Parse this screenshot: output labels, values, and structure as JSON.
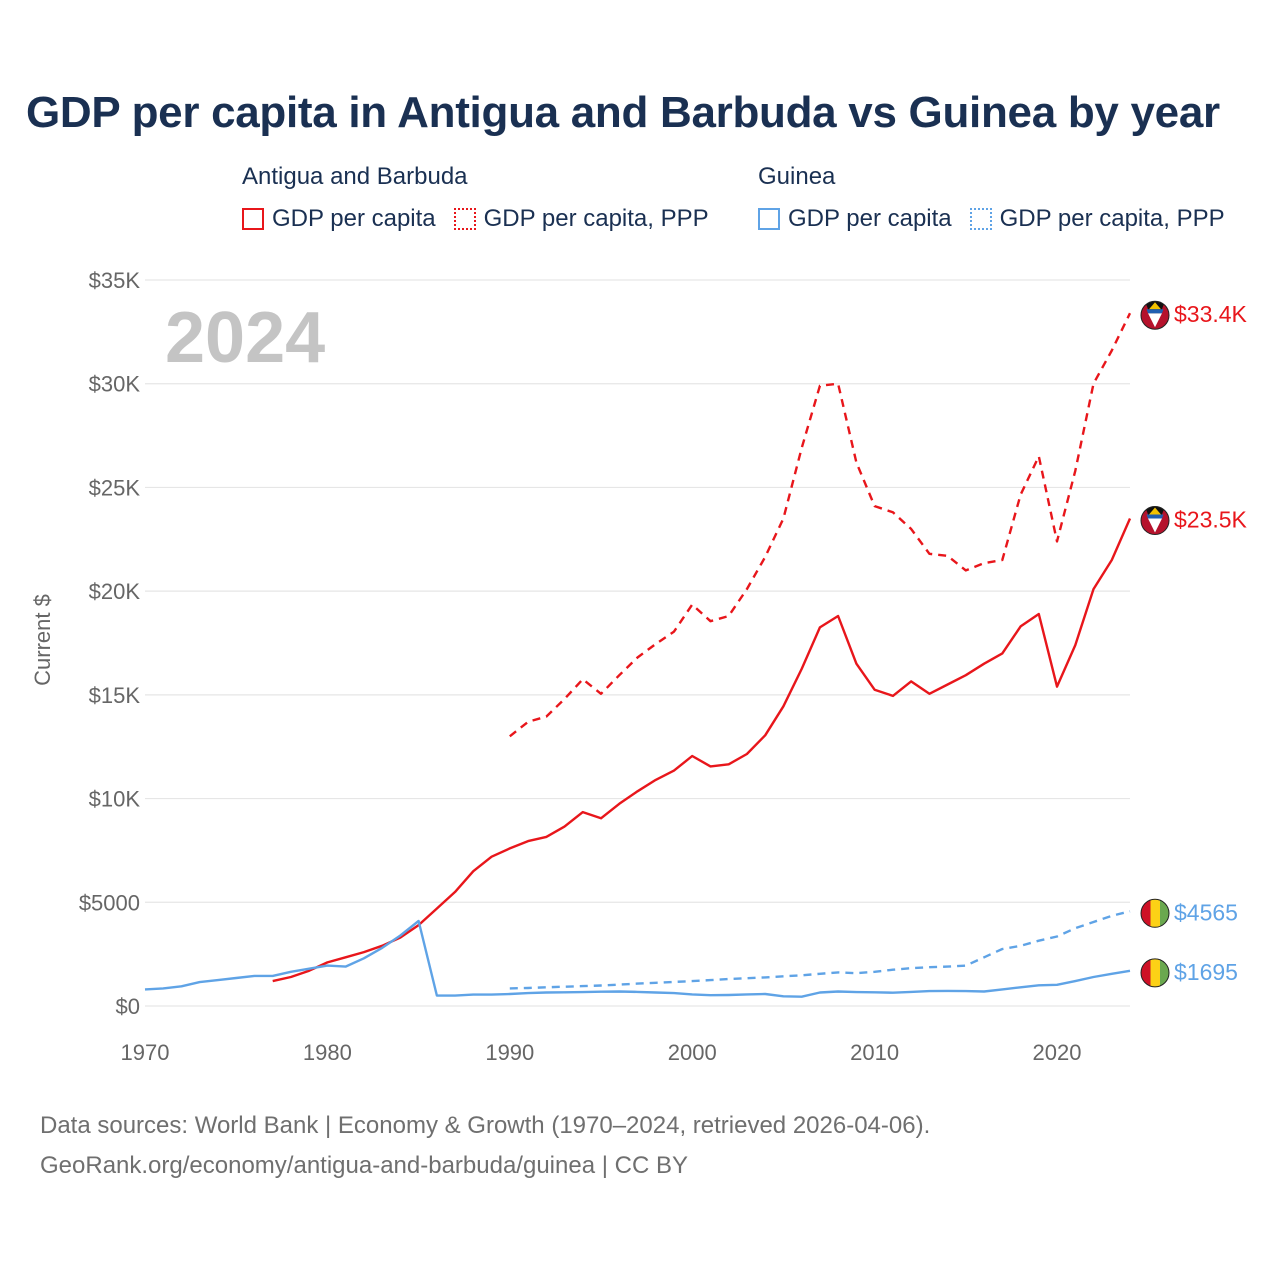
{
  "title": "GDP per capita in Antigua and Barbuda vs Guinea by year",
  "legend": [
    {
      "country": "Antigua and Barbuda",
      "items": [
        {
          "label": "GDP per capita",
          "style": "solid"
        },
        {
          "label": "GDP per capita, PPP",
          "style": "dotted"
        }
      ],
      "color": "#e8161b"
    },
    {
      "country": "Guinea",
      "items": [
        {
          "label": "GDP per capita",
          "style": "solid"
        },
        {
          "label": "GDP per capita, PPP",
          "style": "dotted"
        }
      ],
      "color": "#5fa3e6"
    }
  ],
  "year_label": "2024",
  "footer": {
    "line1": "Data sources: World Bank | Economy & Growth (1970–2024, retrieved 2026-04-06).",
    "line2": "GeoRank.org/economy/antigua-and-barbuda/guinea | CC BY"
  },
  "chart_data": {
    "type": "line",
    "title": "GDP per capita in Antigua and Barbuda vs Guinea by year",
    "xlabel": "",
    "ylabel": "Current $",
    "xlim": [
      1970,
      2024
    ],
    "ylim": [
      0,
      35000
    ],
    "x_ticks": [
      1970,
      1980,
      1990,
      2000,
      2010,
      2020
    ],
    "y_ticks": [
      {
        "value": 0,
        "label": "$0"
      },
      {
        "value": 5000,
        "label": "$5000"
      },
      {
        "value": 10000,
        "label": "$10K"
      },
      {
        "value": 15000,
        "label": "$15K"
      },
      {
        "value": 20000,
        "label": "$20K"
      },
      {
        "value": 25000,
        "label": "$25K"
      },
      {
        "value": 30000,
        "label": "$30K"
      },
      {
        "value": 35000,
        "label": "$35K"
      }
    ],
    "series": [
      {
        "name": "Antigua and Barbuda GDP per capita",
        "color": "#e8161b",
        "dash": "solid",
        "end_label": "$23.5K",
        "flag": "antigua-and-barbuda",
        "x": [
          1977,
          1978,
          1979,
          1980,
          1981,
          1982,
          1983,
          1984,
          1985,
          1986,
          1987,
          1988,
          1989,
          1990,
          1991,
          1992,
          1993,
          1994,
          1995,
          1996,
          1997,
          1998,
          1999,
          2000,
          2001,
          2002,
          2003,
          2004,
          2005,
          2006,
          2007,
          2008,
          2009,
          2010,
          2011,
          2012,
          2013,
          2014,
          2015,
          2016,
          2017,
          2018,
          2019,
          2020,
          2021,
          2022,
          2023,
          2024
        ],
        "values": [
          1200,
          1400,
          1700,
          2100,
          2350,
          2600,
          2900,
          3300,
          3900,
          4700,
          5500,
          6500,
          7200,
          7600,
          7950,
          8150,
          8650,
          9350,
          9050,
          9750,
          10350,
          10900,
          11350,
          12050,
          11550,
          11650,
          12150,
          13050,
          14450,
          16250,
          18250,
          18800,
          16500,
          15250,
          14950,
          15650,
          15050,
          15500,
          15950,
          16500,
          17000,
          18300,
          18900,
          15400,
          17400,
          20100,
          21500,
          23500
        ]
      },
      {
        "name": "Antigua and Barbuda GDP per capita, PPP",
        "color": "#e8161b",
        "dash": "dashed",
        "end_label": "$33.4K",
        "flag": "antigua-and-barbuda",
        "x": [
          1990,
          1991,
          1992,
          1993,
          1994,
          1995,
          1996,
          1997,
          1998,
          1999,
          2000,
          2001,
          2002,
          2003,
          2004,
          2005,
          2006,
          2007,
          2008,
          2009,
          2010,
          2011,
          2012,
          2013,
          2014,
          2015,
          2016,
          2017,
          2018,
          2019,
          2020,
          2021,
          2022,
          2023,
          2024
        ],
        "values": [
          13000,
          13700,
          13950,
          14800,
          15750,
          15050,
          15950,
          16800,
          17450,
          18050,
          19350,
          18550,
          18800,
          20100,
          21650,
          23500,
          26900,
          29900,
          30000,
          26200,
          24100,
          23800,
          23000,
          21800,
          21700,
          21000,
          21350,
          21500,
          24650,
          26500,
          22400,
          25800,
          30000,
          31600,
          33400
        ]
      },
      {
        "name": "Guinea GDP per capita",
        "color": "#5fa3e6",
        "dash": "solid",
        "end_label": "$1695",
        "flag": "guinea",
        "x": [
          1970,
          1971,
          1972,
          1973,
          1974,
          1975,
          1976,
          1977,
          1978,
          1979,
          1980,
          1981,
          1982,
          1983,
          1984,
          1985,
          1986,
          1987,
          1988,
          1989,
          1990,
          1991,
          1992,
          1993,
          1994,
          1995,
          1996,
          1997,
          1998,
          1999,
          2000,
          2001,
          2002,
          2003,
          2004,
          2005,
          2006,
          2007,
          2008,
          2009,
          2010,
          2011,
          2012,
          2013,
          2014,
          2015,
          2016,
          2017,
          2018,
          2019,
          2020,
          2021,
          2022,
          2023,
          2024
        ],
        "values": [
          800,
          850,
          950,
          1150,
          1250,
          1350,
          1450,
          1450,
          1650,
          1800,
          1950,
          1900,
          2300,
          2800,
          3400,
          4100,
          500,
          500,
          550,
          550,
          580,
          620,
          650,
          660,
          670,
          690,
          700,
          680,
          650,
          620,
          560,
          520,
          530,
          560,
          580,
          470,
          450,
          650,
          700,
          670,
          660,
          640,
          680,
          720,
          730,
          720,
          700,
          800,
          900,
          1000,
          1020,
          1200,
          1400,
          1550,
          1695
        ]
      },
      {
        "name": "Guinea GDP per capita, PPP",
        "color": "#5fa3e6",
        "dash": "dashed",
        "end_label": "$4565",
        "flag": "guinea",
        "x": [
          1990,
          1991,
          1992,
          1993,
          1994,
          1995,
          1996,
          1997,
          1998,
          1999,
          2000,
          2001,
          2002,
          2003,
          2004,
          2005,
          2006,
          2007,
          2008,
          2009,
          2010,
          2011,
          2012,
          2013,
          2014,
          2015,
          2016,
          2017,
          2018,
          2019,
          2020,
          2021,
          2022,
          2023,
          2024
        ],
        "values": [
          850,
          870,
          900,
          930,
          960,
          990,
          1030,
          1080,
          1120,
          1160,
          1200,
          1250,
          1300,
          1340,
          1380,
          1430,
          1480,
          1550,
          1620,
          1580,
          1650,
          1750,
          1820,
          1870,
          1900,
          1950,
          2350,
          2750,
          2900,
          3150,
          3350,
          3750,
          4050,
          4350,
          4565
        ]
      }
    ]
  }
}
